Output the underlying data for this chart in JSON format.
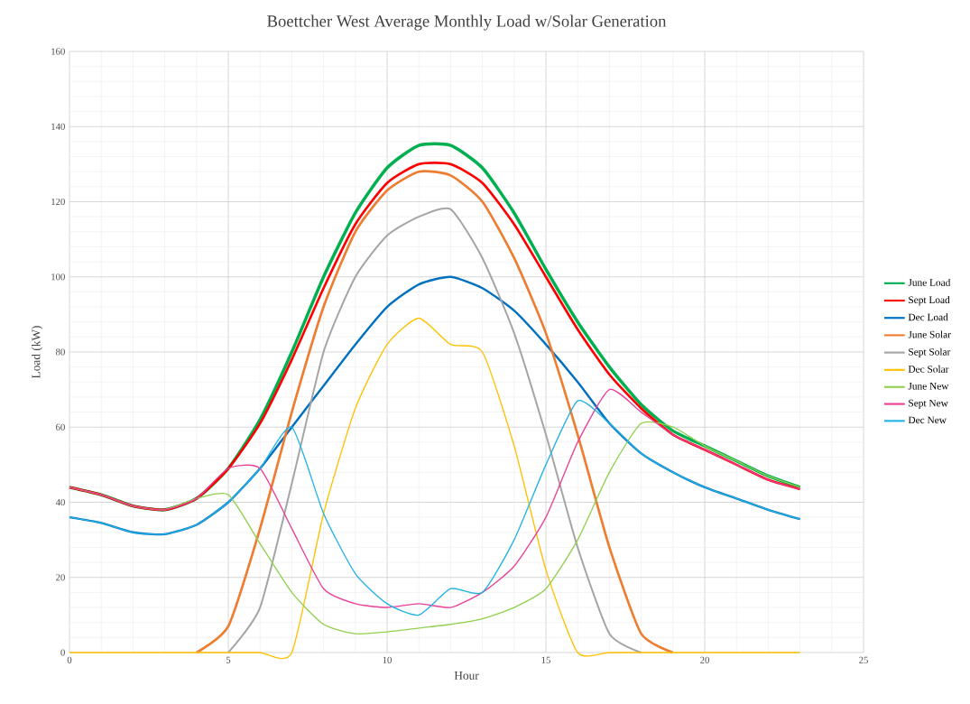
{
  "chart_data": {
    "type": "line",
    "title": "Boettcher West Average Monthly Load w/Solar Generation",
    "xlabel": "Hour",
    "ylabel": "Load (kW)",
    "x": [
      0,
      1,
      2,
      3,
      4,
      5,
      6,
      7,
      8,
      9,
      10,
      11,
      12,
      13,
      14,
      15,
      16,
      17,
      18,
      19,
      20,
      21,
      22,
      23
    ],
    "xlim": [
      0,
      25
    ],
    "xticks": [
      0,
      5,
      10,
      15,
      20,
      25
    ],
    "ylim": [
      0,
      160
    ],
    "yticks": [
      0,
      20,
      40,
      60,
      80,
      100,
      120,
      140,
      160
    ],
    "grid": true,
    "legend": "right",
    "marker": "none",
    "line_style": "solid",
    "series": [
      {
        "name": "June Load",
        "color": "#00b050",
        "values": [
          44,
          42,
          39,
          38,
          41,
          49,
          62,
          80,
          100,
          117,
          129,
          135,
          135,
          129,
          117,
          102,
          88,
          76,
          66,
          59,
          55,
          51,
          47,
          44
        ]
      },
      {
        "name": "Sept Load",
        "color": "#ff0000",
        "values": [
          44,
          42,
          39,
          38,
          41,
          49,
          61,
          78,
          97,
          114,
          125,
          130,
          130,
          125,
          114,
          100,
          86,
          74,
          65,
          58,
          54,
          50,
          46,
          43.5
        ]
      },
      {
        "name": "Dec Load",
        "color": "#0070c0",
        "values": [
          36,
          34.5,
          32,
          31.5,
          34,
          40,
          49,
          60,
          71,
          82,
          92,
          98,
          100,
          97,
          91,
          82,
          72,
          61,
          53,
          48,
          44,
          41,
          38,
          35.5
        ]
      },
      {
        "name": "June Solar",
        "color": "#ed7d31",
        "values": [
          null,
          null,
          null,
          null,
          0,
          7,
          33,
          64,
          92,
          112,
          123,
          128,
          127,
          120,
          105,
          85,
          58,
          28,
          5,
          0,
          null,
          null,
          null,
          null
        ]
      },
      {
        "name": "Sept Solar",
        "color": "#a5a5a5",
        "values": [
          null,
          null,
          null,
          null,
          null,
          0,
          12,
          45,
          80,
          100,
          111,
          116,
          118,
          105,
          85,
          58,
          28,
          5,
          0,
          null,
          null,
          null,
          null,
          null
        ]
      },
      {
        "name": "Dec Solar",
        "color": "#ffc000",
        "values": [
          0,
          0,
          0,
          0,
          0,
          0,
          0,
          0,
          37,
          65,
          82,
          89,
          82,
          80,
          55,
          22,
          0,
          0,
          0,
          0,
          0,
          0,
          0,
          0
        ]
      },
      {
        "name": "June New",
        "color": "#92d050",
        "values": [
          44,
          42,
          39,
          38,
          41,
          42,
          29,
          16,
          7.5,
          5,
          5.5,
          6.5,
          7.5,
          9,
          12,
          17,
          30,
          48,
          61,
          60,
          55,
          51,
          47,
          44
        ]
      },
      {
        "name": "Sept New",
        "color": "#ea3f96",
        "values": [
          44,
          42,
          39,
          38,
          41,
          49,
          49,
          33,
          17,
          13,
          12,
          13,
          12,
          16,
          23,
          36,
          56,
          70,
          64,
          58,
          54,
          50,
          46,
          43.5
        ]
      },
      {
        "name": "Dec New",
        "color": "#22b2e6",
        "values": [
          36,
          34.5,
          32,
          31.5,
          34,
          40,
          49,
          60,
          37,
          21,
          13,
          10,
          17,
          16,
          30,
          50,
          67,
          61,
          53,
          48,
          44,
          41,
          38,
          35.5
        ]
      }
    ]
  }
}
